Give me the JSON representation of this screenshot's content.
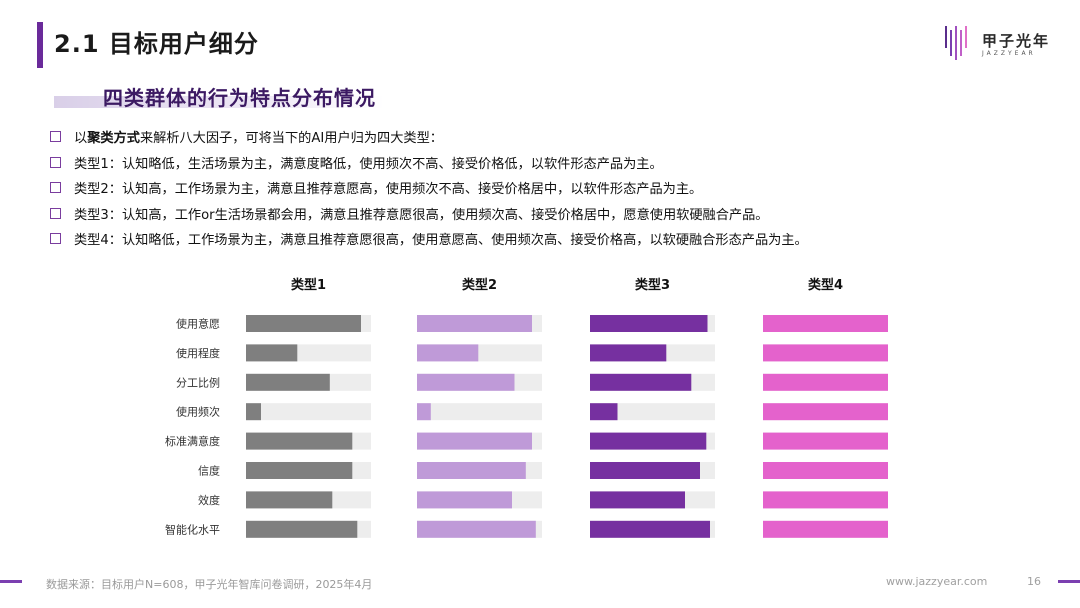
{
  "header": {
    "title": "2.1 目标用户细分",
    "subtitle": "四类群体的行为特点分布情况",
    "logo_name": "甲子光年",
    "logo_sub": "JAZZYEAR"
  },
  "bullets": [
    {
      "prefix": "以",
      "bold": "聚类方式",
      "rest": "来解析八大因子，可将当下的AI用户归为四大类型："
    },
    {
      "prefix": "",
      "bold": "",
      "rest": "类型1：认知略低，生活场景为主，满意度略低，使用频次不高、接受价格低，以软件形态产品为主。"
    },
    {
      "prefix": "",
      "bold": "",
      "rest": "类型2：认知高，工作场景为主，满意且推荐意愿高，使用频次不高、接受价格居中，以软件形态产品为主。"
    },
    {
      "prefix": "",
      "bold": "",
      "rest": "类型3：认知高，工作or生活场景都会用，满意且推荐意愿很高，使用频次高、接受价格居中，愿意使用软硬融合产品。"
    },
    {
      "prefix": "",
      "bold": "",
      "rest": "类型4：认知略低，工作场景为主，满意且推荐意愿很高，使用意愿高、使用频次高、接受价格高，以软硬融合形态产品为主。"
    }
  ],
  "chart_data": {
    "type": "bar",
    "orientation": "horizontal",
    "categories": [
      "使用意愿",
      "使用程度",
      "分工比例",
      "使用频次",
      "标准满意度",
      "信度",
      "效度",
      "智能化水平"
    ],
    "series": [
      {
        "name": "类型1",
        "color": "#7f7f7f",
        "values": [
          0.92,
          0.41,
          0.67,
          0.12,
          0.85,
          0.85,
          0.69,
          0.89
        ]
      },
      {
        "name": "类型2",
        "color": "#bf9ad8",
        "values": [
          0.92,
          0.49,
          0.78,
          0.11,
          0.92,
          0.87,
          0.76,
          0.95
        ]
      },
      {
        "name": "类型3",
        "color": "#7630a0",
        "values": [
          0.94,
          0.61,
          0.81,
          0.22,
          0.93,
          0.88,
          0.76,
          0.96
        ]
      },
      {
        "name": "类型4",
        "color": "#e462cc",
        "values": [
          1.0,
          1.0,
          1.0,
          1.0,
          1.0,
          1.0,
          1.0,
          1.0
        ]
      }
    ],
    "track_color": "#ededed",
    "ylim": [
      0,
      1
    ]
  },
  "footer": {
    "source": "数据来源：目标用户N=608，甲子光年智库问卷调研，2025年4月",
    "url": "www.jazzyear.com",
    "page": "16"
  }
}
